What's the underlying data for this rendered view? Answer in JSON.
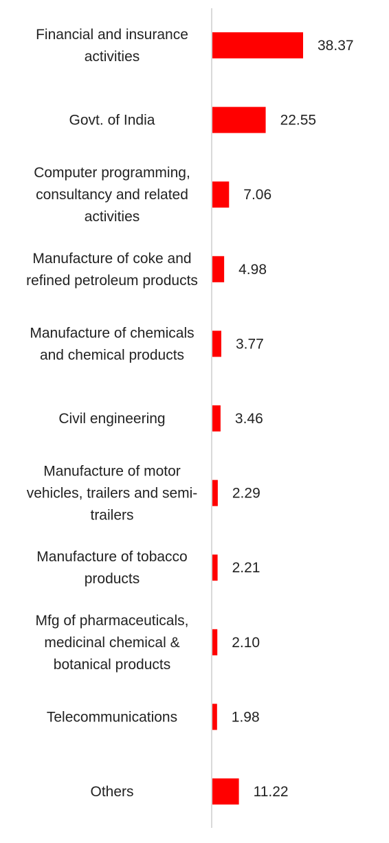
{
  "chart_data": {
    "type": "bar",
    "orientation": "horizontal",
    "categories": [
      [
        "Financial and insurance",
        "activities"
      ],
      [
        "Govt. of India"
      ],
      [
        "Computer programming,",
        "consultancy and related",
        "activities"
      ],
      [
        "Manufacture of coke and",
        "refined petroleum products"
      ],
      [
        "Manufacture of chemicals",
        "and chemical products"
      ],
      [
        "Civil engineering"
      ],
      [
        "Manufacture of motor",
        "vehicles, trailers and semi-",
        "trailers"
      ],
      [
        "Manufacture of tobacco",
        "products"
      ],
      [
        "Mfg of pharmaceuticals,",
        "medicinal chemical &",
        "botanical products"
      ],
      [
        "Telecommunications"
      ],
      [
        "Others"
      ]
    ],
    "values": [
      38.37,
      22.55,
      7.06,
      4.98,
      3.77,
      3.46,
      2.29,
      2.21,
      2.1,
      1.98,
      11.22
    ],
    "value_labels": [
      "38.37",
      "22.55",
      "7.06",
      "4.98",
      "3.77",
      "3.46",
      "2.29",
      "2.21",
      "2.10",
      "1.98",
      "11.22"
    ],
    "bar_color": "#ff0000",
    "axis_color": "#d9d9d9",
    "grid": false,
    "legend": "none"
  }
}
